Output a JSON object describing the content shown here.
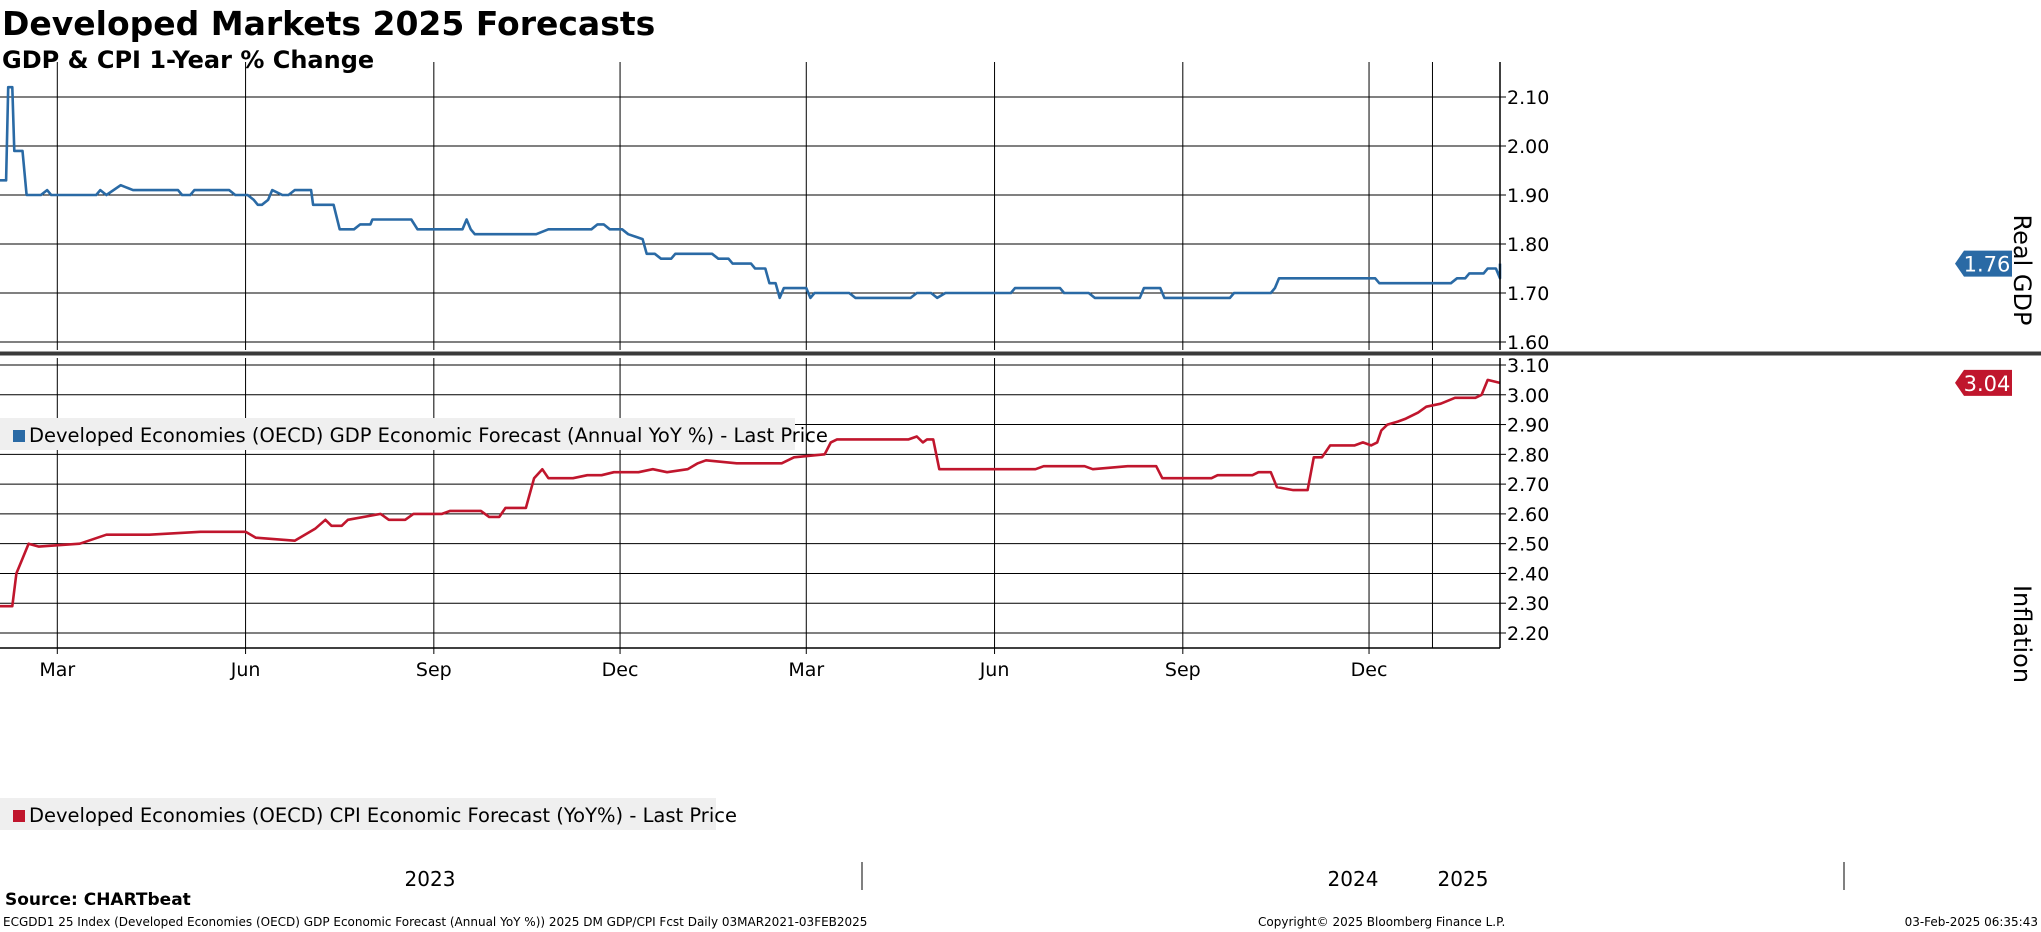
{
  "header": {
    "title": "Developed Markets 2025 Forecasts",
    "subtitle": "GDP & CPI 1-Year % Change"
  },
  "footer": {
    "source": "Source: CHARTbeat",
    "description": "ECGDD1 25 Index (Developed Economies (OECD) GDP Economic Forecast (Annual YoY %)) 2025 DM GDP/CPI Fcst  Daily 03MAR2021-03FEB2025",
    "copyright": "Copyright© 2025 Bloomberg Finance L.P.",
    "timestamp": "03-Feb-2025 06:35:43"
  },
  "colors": {
    "gdp": "#2a6aa5",
    "cpi": "#c0162d",
    "grid": "#000000"
  },
  "chart_data": [
    {
      "type": "line",
      "ylabel": "Real GDP",
      "ylim": [
        1.58,
        2.18
      ],
      "yticks": [
        "2.10",
        "2.00",
        "1.90",
        "1.80",
        "1.70",
        "1.60"
      ],
      "xlim": [
        "2023-02-01",
        "2025-02-03"
      ],
      "last_value_label": "1.76",
      "grid": true,
      "legend_position": "bottom-left",
      "series": [
        {
          "name": "Developed Economies (OECD) GDP Economic Forecast (Annual YoY %) - Last Price",
          "color": "#2a6aa5",
          "points": [
            [
              "2023-02-01",
              1.93
            ],
            [
              "2023-02-04",
              1.93
            ],
            [
              "2023-02-05",
              2.12
            ],
            [
              "2023-02-07",
              2.12
            ],
            [
              "2023-02-08",
              1.99
            ],
            [
              "2023-02-12",
              1.99
            ],
            [
              "2023-02-14",
              1.9
            ],
            [
              "2023-02-21",
              1.9
            ],
            [
              "2023-02-24",
              1.91
            ],
            [
              "2023-02-26",
              1.9
            ],
            [
              "2023-03-20",
              1.9
            ],
            [
              "2023-03-22",
              1.91
            ],
            [
              "2023-03-25",
              1.9
            ],
            [
              "2023-04-01",
              1.92
            ],
            [
              "2023-04-07",
              1.91
            ],
            [
              "2023-04-10",
              1.91
            ],
            [
              "2023-04-14",
              1.91
            ],
            [
              "2023-04-29",
              1.91
            ],
            [
              "2023-05-01",
              1.9
            ],
            [
              "2023-05-05",
              1.9
            ],
            [
              "2023-05-07",
              1.91
            ],
            [
              "2023-05-24",
              1.91
            ],
            [
              "2023-05-27",
              1.9
            ],
            [
              "2023-06-02",
              1.9
            ],
            [
              "2023-06-05",
              1.89
            ],
            [
              "2023-06-07",
              1.88
            ],
            [
              "2023-06-09",
              1.88
            ],
            [
              "2023-06-12",
              1.89
            ],
            [
              "2023-06-14",
              1.91
            ],
            [
              "2023-06-19",
              1.9
            ],
            [
              "2023-06-22",
              1.9
            ],
            [
              "2023-06-25",
              1.91
            ],
            [
              "2023-07-03",
              1.91
            ],
            [
              "2023-07-04",
              1.88
            ],
            [
              "2023-07-14",
              1.88
            ],
            [
              "2023-07-17",
              1.83
            ],
            [
              "2023-07-24",
              1.83
            ],
            [
              "2023-07-27",
              1.84
            ],
            [
              "2023-08-01",
              1.84
            ],
            [
              "2023-08-02",
              1.85
            ],
            [
              "2023-08-21",
              1.85
            ],
            [
              "2023-08-24",
              1.83
            ],
            [
              "2023-09-15",
              1.83
            ],
            [
              "2023-09-17",
              1.85
            ],
            [
              "2023-09-19",
              1.83
            ],
            [
              "2023-09-21",
              1.82
            ],
            [
              "2023-10-21",
              1.82
            ],
            [
              "2023-10-27",
              1.83
            ],
            [
              "2023-11-17",
              1.83
            ],
            [
              "2023-11-20",
              1.84
            ],
            [
              "2023-11-23",
              1.84
            ],
            [
              "2023-11-26",
              1.83
            ],
            [
              "2023-12-02",
              1.83
            ],
            [
              "2023-12-05",
              1.82
            ],
            [
              "2023-12-12",
              1.81
            ],
            [
              "2023-12-14",
              1.78
            ],
            [
              "2023-12-18",
              1.78
            ],
            [
              "2023-12-21",
              1.77
            ],
            [
              "2023-12-26",
              1.77
            ],
            [
              "2023-12-28",
              1.78
            ],
            [
              "2024-01-15",
              1.78
            ],
            [
              "2024-01-18",
              1.77
            ],
            [
              "2024-01-23",
              1.77
            ],
            [
              "2024-01-25",
              1.76
            ],
            [
              "2024-02-03",
              1.76
            ],
            [
              "2024-02-05",
              1.75
            ],
            [
              "2024-02-10",
              1.75
            ],
            [
              "2024-02-12",
              1.72
            ],
            [
              "2024-02-15",
              1.72
            ],
            [
              "2024-02-17",
              1.69
            ],
            [
              "2024-02-19",
              1.71
            ],
            [
              "2024-03-01",
              1.71
            ],
            [
              "2024-03-03",
              1.69
            ],
            [
              "2024-03-05",
              1.7
            ],
            [
              "2024-03-22",
              1.7
            ],
            [
              "2024-03-25",
              1.69
            ],
            [
              "2024-04-21",
              1.69
            ],
            [
              "2024-04-24",
              1.7
            ],
            [
              "2024-05-01",
              1.7
            ],
            [
              "2024-05-04",
              1.69
            ],
            [
              "2024-05-08",
              1.7
            ],
            [
              "2024-06-09",
              1.7
            ],
            [
              "2024-06-11",
              1.71
            ],
            [
              "2024-07-03",
              1.71
            ],
            [
              "2024-07-05",
              1.7
            ],
            [
              "2024-07-17",
              1.7
            ],
            [
              "2024-07-20",
              1.69
            ],
            [
              "2024-08-11",
              1.69
            ],
            [
              "2024-08-13",
              1.71
            ],
            [
              "2024-08-21",
              1.71
            ],
            [
              "2024-08-23",
              1.69
            ],
            [
              "2024-09-24",
              1.69
            ],
            [
              "2024-09-26",
              1.7
            ],
            [
              "2024-10-14",
              1.7
            ],
            [
              "2024-10-16",
              1.71
            ],
            [
              "2024-10-18",
              1.73
            ],
            [
              "2024-12-04",
              1.73
            ],
            [
              "2024-12-06",
              1.72
            ],
            [
              "2025-01-10",
              1.72
            ],
            [
              "2025-01-13",
              1.73
            ],
            [
              "2025-01-17",
              1.73
            ],
            [
              "2025-01-19",
              1.74
            ],
            [
              "2025-01-26",
              1.74
            ],
            [
              "2025-01-28",
              1.75
            ],
            [
              "2025-02-01",
              1.75
            ],
            [
              "2025-02-03",
              1.73
            ],
            [
              "2025-02-03",
              1.76
            ]
          ]
        }
      ]
    },
    {
      "type": "line",
      "ylabel": "Inflation",
      "ylim": [
        2.18,
        3.12
      ],
      "yticks": [
        "3.10",
        "3.00",
        "2.90",
        "2.80",
        "2.70",
        "2.60",
        "2.50",
        "2.40",
        "2.30",
        "2.20"
      ],
      "xticks": [
        "Mar",
        "Jun",
        "Sep",
        "Dec",
        "Mar",
        "Jun",
        "Sep",
        "Dec"
      ],
      "year_labels": [
        "2023",
        "2024",
        "2025"
      ],
      "xlim": [
        "2023-02-01",
        "2025-02-03"
      ],
      "last_value_label": "3.04",
      "grid": true,
      "legend_position": "bottom-left",
      "series": [
        {
          "name": "Developed Economies (OECD) CPI Economic Forecast (YoY%) - Last Price",
          "color": "#c0162d",
          "points": [
            [
              "2023-02-01",
              2.29
            ],
            [
              "2023-02-07",
              2.29
            ],
            [
              "2023-02-09",
              2.4
            ],
            [
              "2023-02-12",
              2.45
            ],
            [
              "2023-02-15",
              2.5
            ],
            [
              "2023-02-20",
              2.49
            ],
            [
              "2023-03-12",
              2.5
            ],
            [
              "2023-03-25",
              2.53
            ],
            [
              "2023-04-15",
              2.53
            ],
            [
              "2023-05-10",
              2.54
            ],
            [
              "2023-06-01",
              2.54
            ],
            [
              "2023-06-06",
              2.52
            ],
            [
              "2023-06-25",
              2.51
            ],
            [
              "2023-07-05",
              2.55
            ],
            [
              "2023-07-10",
              2.58
            ],
            [
              "2023-07-13",
              2.56
            ],
            [
              "2023-07-18",
              2.56
            ],
            [
              "2023-07-21",
              2.58
            ],
            [
              "2023-08-06",
              2.6
            ],
            [
              "2023-08-10",
              2.58
            ],
            [
              "2023-08-18",
              2.58
            ],
            [
              "2023-08-22",
              2.6
            ],
            [
              "2023-09-05",
              2.6
            ],
            [
              "2023-09-09",
              2.61
            ],
            [
              "2023-09-24",
              2.61
            ],
            [
              "2023-09-28",
              2.59
            ],
            [
              "2023-10-03",
              2.59
            ],
            [
              "2023-10-06",
              2.62
            ],
            [
              "2023-10-16",
              2.62
            ],
            [
              "2023-10-20",
              2.72
            ],
            [
              "2023-10-24",
              2.75
            ],
            [
              "2023-10-27",
              2.72
            ],
            [
              "2023-11-08",
              2.72
            ],
            [
              "2023-11-15",
              2.73
            ],
            [
              "2023-11-22",
              2.73
            ],
            [
              "2023-11-28",
              2.74
            ],
            [
              "2023-12-10",
              2.74
            ],
            [
              "2023-12-17",
              2.75
            ],
            [
              "2023-12-24",
              2.74
            ],
            [
              "2024-01-03",
              2.75
            ],
            [
              "2024-01-08",
              2.77
            ],
            [
              "2024-01-12",
              2.78
            ],
            [
              "2024-01-27",
              2.77
            ],
            [
              "2024-02-09",
              2.77
            ],
            [
              "2024-02-18",
              2.77
            ],
            [
              "2024-02-24",
              2.79
            ],
            [
              "2024-03-10",
              2.8
            ],
            [
              "2024-03-13",
              2.84
            ],
            [
              "2024-03-16",
              2.85
            ],
            [
              "2024-04-20",
              2.85
            ],
            [
              "2024-04-24",
              2.86
            ],
            [
              "2024-04-27",
              2.84
            ],
            [
              "2024-04-29",
              2.85
            ],
            [
              "2024-05-02",
              2.85
            ],
            [
              "2024-05-05",
              2.75
            ],
            [
              "2024-06-21",
              2.75
            ],
            [
              "2024-06-25",
              2.76
            ],
            [
              "2024-07-15",
              2.76
            ],
            [
              "2024-07-19",
              2.75
            ],
            [
              "2024-08-05",
              2.76
            ],
            [
              "2024-08-19",
              2.76
            ],
            [
              "2024-08-22",
              2.72
            ],
            [
              "2024-09-15",
              2.72
            ],
            [
              "2024-09-18",
              2.73
            ],
            [
              "2024-10-05",
              2.73
            ],
            [
              "2024-10-08",
              2.74
            ],
            [
              "2024-10-14",
              2.74
            ],
            [
              "2024-10-17",
              2.69
            ],
            [
              "2024-10-25",
              2.68
            ],
            [
              "2024-11-01",
              2.68
            ],
            [
              "2024-11-04",
              2.79
            ],
            [
              "2024-11-08",
              2.79
            ],
            [
              "2024-11-12",
              2.83
            ],
            [
              "2024-11-24",
              2.83
            ],
            [
              "2024-11-28",
              2.84
            ],
            [
              "2024-12-02",
              2.83
            ],
            [
              "2024-12-05",
              2.84
            ],
            [
              "2024-12-07",
              2.88
            ],
            [
              "2024-12-10",
              2.9
            ],
            [
              "2024-12-15",
              2.91
            ],
            [
              "2024-12-19",
              2.92
            ],
            [
              "2024-12-25",
              2.94
            ],
            [
              "2024-12-29",
              2.96
            ],
            [
              "2025-01-05",
              2.97
            ],
            [
              "2025-01-12",
              2.99
            ],
            [
              "2025-01-22",
              2.99
            ],
            [
              "2025-01-25",
              3.0
            ],
            [
              "2025-01-28",
              3.05
            ],
            [
              "2025-02-03",
              3.04
            ]
          ]
        }
      ]
    }
  ]
}
